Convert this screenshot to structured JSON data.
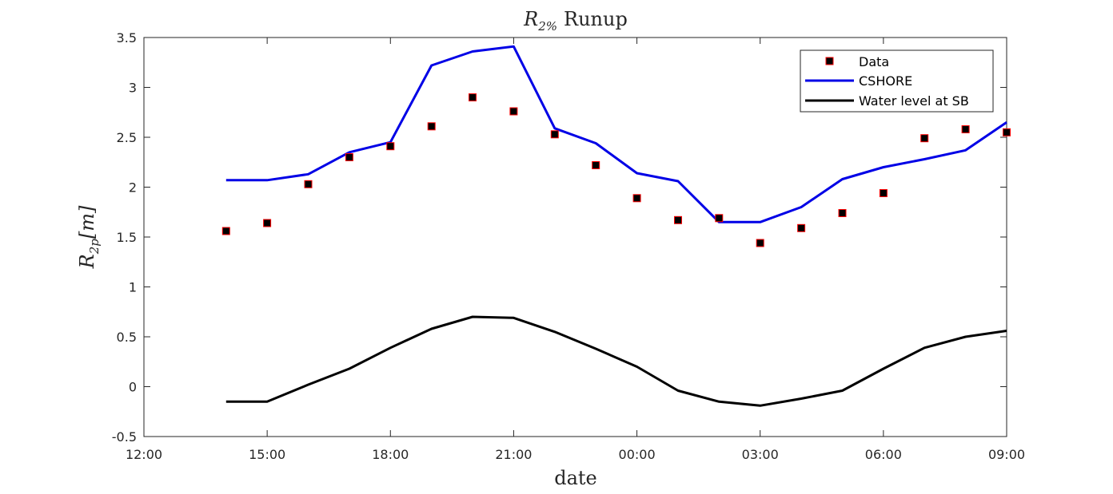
{
  "chart_data": {
    "type": "line",
    "title": "R2% Runup",
    "title_main": "R",
    "title_sub": "2%",
    "title_rest": "Runup",
    "xlabel": "date",
    "ylabel_main": "R",
    "ylabel_sub": "2p",
    "ylabel_rest": "[m]",
    "ylim": [
      -0.5,
      3.5
    ],
    "y_ticks": [
      -0.5,
      0,
      0.5,
      1,
      1.5,
      2,
      2.5,
      3,
      3.5
    ],
    "y_tick_labels": [
      "-0.5",
      "0",
      "0.5",
      "1",
      "1.5",
      "2",
      "2.5",
      "3",
      "3.5"
    ],
    "xlim_hours": [
      0,
      21
    ],
    "x_ticks_hours": [
      0,
      3,
      6,
      9,
      12,
      15,
      18,
      21
    ],
    "x_tick_labels": [
      "12:00",
      "15:00",
      "18:00",
      "21:00",
      "00:00",
      "03:00",
      "06:00",
      "09:00"
    ],
    "x_times": [
      "14:00",
      "15:00",
      "16:00",
      "17:00",
      "18:00",
      "19:00",
      "20:00",
      "21:00",
      "22:00",
      "23:00",
      "00:00",
      "01:00",
      "02:00",
      "03:00",
      "04:00",
      "05:00",
      "06:00",
      "07:00",
      "08:00",
      "09:00"
    ],
    "grid": false,
    "legend_position": "top-right",
    "series": [
      {
        "name": "Data",
        "kind": "scatter",
        "marker": "square",
        "color": "#000000",
        "edge_color": "#ff0000",
        "values": [
          1.56,
          1.64,
          2.03,
          2.3,
          2.41,
          2.61,
          2.9,
          2.76,
          2.53,
          2.22,
          1.89,
          1.67,
          1.69,
          1.44,
          1.59,
          1.74,
          1.94,
          2.49,
          2.58,
          2.55
        ]
      },
      {
        "name": "CSHORE",
        "kind": "line",
        "color": "#0000e6",
        "values": [
          2.07,
          2.07,
          2.13,
          2.35,
          2.45,
          3.22,
          3.36,
          3.41,
          2.59,
          2.44,
          2.14,
          2.06,
          1.65,
          1.65,
          1.8,
          2.08,
          2.2,
          2.28,
          2.37,
          2.65
        ]
      },
      {
        "name": "Water level at SB",
        "kind": "line",
        "color": "#000000",
        "values": [
          -0.15,
          -0.15,
          0.02,
          0.18,
          0.39,
          0.58,
          0.7,
          0.69,
          0.55,
          0.38,
          0.2,
          -0.04,
          -0.15,
          -0.19,
          -0.12,
          -0.04,
          0.18,
          0.39,
          0.5,
          0.56
        ]
      }
    ]
  }
}
